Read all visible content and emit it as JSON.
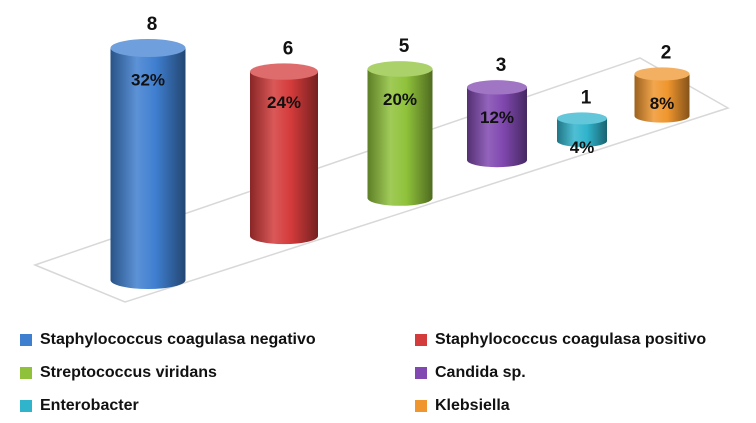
{
  "chart_data": {
    "type": "bar",
    "categories": [
      "Staphylococcus coagulasa negativo",
      "Staphylococcus coagulasa positivo",
      "Streptococcus viridans",
      "Candida sp.",
      "Enterobacter",
      "Klebsiella"
    ],
    "values": [
      8,
      6,
      5,
      3,
      1,
      2
    ],
    "percent_values": [
      32,
      24,
      20,
      12,
      4,
      8
    ],
    "percent_labels": [
      "32%",
      "24%",
      "20%",
      "12%",
      "4%",
      "8%"
    ],
    "colors": [
      "#3f7fd0",
      "#d43b3b",
      "#8fc23a",
      "#8048b0",
      "#30b4cc",
      "#f0962e"
    ]
  }
}
